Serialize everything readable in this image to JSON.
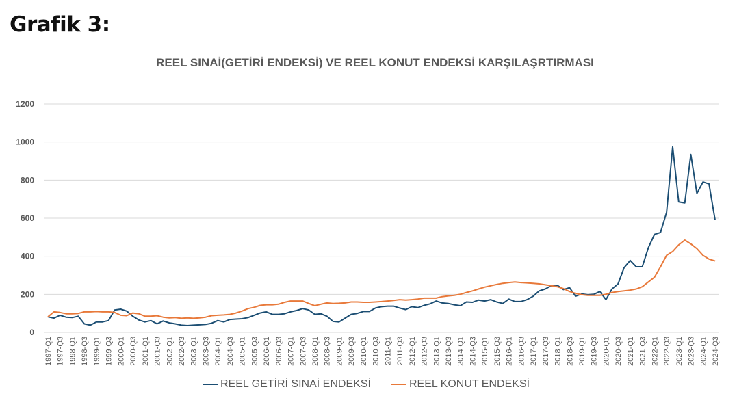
{
  "heading": "Grafik 3:",
  "chart_data": {
    "type": "line",
    "title": "REEL SINAİ(GETİRİ ENDEKSİ) VE REEL KONUT ENDEKSİ KARŞILAŞRTIRMASI",
    "xlabel": "",
    "ylabel": "",
    "ylim": [
      0,
      1200
    ],
    "yticks": [
      "0",
      "200",
      "400",
      "600",
      "800",
      "1000",
      "1200"
    ],
    "grid": true,
    "legend_position": "bottom",
    "start_year": 1997,
    "series": [
      {
        "name": "REEL GETİRİ SINAİ ENDEKSİ",
        "color": "#1c4e73",
        "values": [
          82,
          75,
          90,
          80,
          78,
          85,
          45,
          38,
          55,
          55,
          62,
          118,
          122,
          112,
          85,
          65,
          55,
          62,
          45,
          60,
          50,
          45,
          38,
          36,
          38,
          40,
          42,
          48,
          62,
          55,
          68,
          70,
          72,
          78,
          90,
          102,
          108,
          95,
          95,
          98,
          108,
          115,
          125,
          118,
          95,
          98,
          85,
          58,
          55,
          75,
          95,
          100,
          110,
          110,
          128,
          135,
          138,
          138,
          128,
          120,
          135,
          130,
          142,
          150,
          165,
          155,
          152,
          145,
          140,
          160,
          158,
          170,
          165,
          172,
          160,
          152,
          175,
          162,
          162,
          172,
          190,
          218,
          228,
          245,
          248,
          225,
          235,
          190,
          202,
          198,
          200,
          215,
          172,
          228,
          255,
          340,
          378,
          345,
          345,
          445,
          515,
          525,
          630,
          975,
          685,
          680,
          935,
          730,
          790,
          780,
          590
        ]
      },
      {
        "name": "REEL KONUT ENDEKSİ",
        "color": "#e8793a",
        "values": [
          82,
          108,
          105,
          98,
          98,
          100,
          108,
          108,
          110,
          108,
          108,
          105,
          90,
          88,
          102,
          98,
          85,
          85,
          88,
          80,
          76,
          78,
          74,
          76,
          74,
          76,
          80,
          88,
          90,
          92,
          95,
          102,
          112,
          125,
          132,
          142,
          145,
          145,
          148,
          158,
          165,
          165,
          165,
          152,
          140,
          148,
          155,
          152,
          153,
          155,
          160,
          160,
          158,
          158,
          160,
          162,
          165,
          168,
          172,
          170,
          172,
          175,
          180,
          180,
          180,
          188,
          192,
          195,
          200,
          210,
          218,
          228,
          238,
          245,
          252,
          258,
          262,
          265,
          262,
          260,
          258,
          255,
          250,
          245,
          240,
          230,
          215,
          205,
          198,
          195,
          195,
          195,
          200,
          210,
          215,
          218,
          222,
          228,
          240,
          265,
          290,
          345,
          405,
          425,
          460,
          485,
          465,
          440,
          405,
          385,
          375
        ]
      }
    ]
  }
}
